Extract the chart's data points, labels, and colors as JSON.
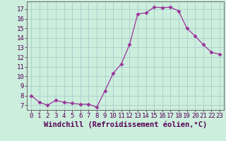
{
  "x": [
    0,
    1,
    2,
    3,
    4,
    5,
    6,
    7,
    8,
    9,
    10,
    11,
    12,
    13,
    14,
    15,
    16,
    17,
    18,
    19,
    20,
    21,
    22,
    23
  ],
  "y": [
    8.0,
    7.3,
    7.0,
    7.5,
    7.3,
    7.2,
    7.1,
    7.1,
    6.8,
    8.5,
    10.3,
    11.3,
    13.3,
    16.5,
    16.6,
    17.2,
    17.15,
    17.2,
    16.8,
    15.0,
    14.2,
    13.3,
    12.5,
    12.3
  ],
  "line_color": "#993399",
  "marker": "D",
  "marker_size": 2.5,
  "bg_color": "#cceedd",
  "grid_color": "#aacccc",
  "xlabel": "Windchill (Refroidissement éolien,°C)",
  "xlabel_fontsize": 7.5,
  "tick_fontsize": 6.5,
  "ylim": [
    6.5,
    17.8
  ],
  "yticks": [
    7,
    8,
    9,
    10,
    11,
    12,
    13,
    14,
    15,
    16,
    17
  ],
  "xlim": [
    -0.5,
    23.5
  ],
  "xticks": [
    0,
    1,
    2,
    3,
    4,
    5,
    6,
    7,
    8,
    9,
    10,
    11,
    12,
    13,
    14,
    15,
    16,
    17,
    18,
    19,
    20,
    21,
    22,
    23
  ]
}
